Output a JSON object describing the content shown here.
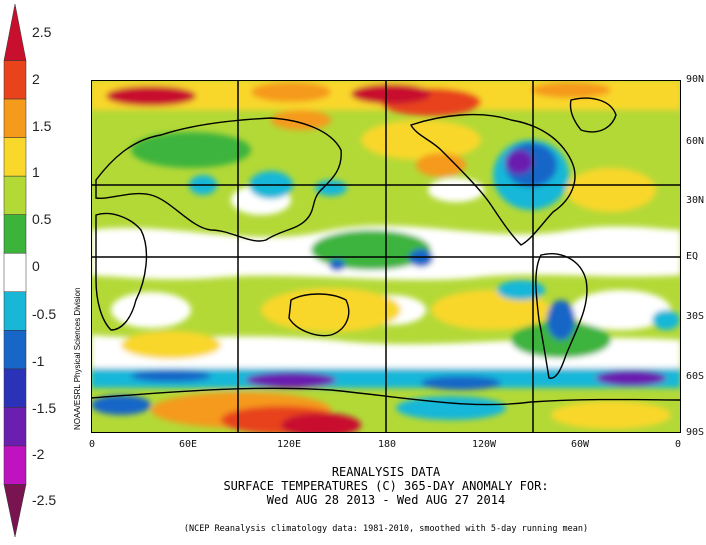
{
  "colorbar": {
    "labels": [
      "2.5",
      "2",
      "1.5",
      "1",
      "0.5",
      "0",
      "-0.5",
      "-1",
      "-1.5",
      "-2",
      "-2.5"
    ],
    "colors": [
      "#c8102e",
      "#e8431b",
      "#f59a1b",
      "#f9d72b",
      "#b3d937",
      "#3cb43c",
      "#ffffff",
      "#18b7d8",
      "#1866c8",
      "#2a33b8",
      "#6a1fb0",
      "#c013c0",
      "#7a1450"
    ]
  },
  "map": {
    "projection": "cylindrical equidistant",
    "lat_labels": [
      "90N",
      "60N",
      "30N",
      "EQ",
      "30S",
      "60S",
      "90S"
    ],
    "lon_labels": [
      "0",
      "60E",
      "120E",
      "180",
      "120W",
      "60W",
      "0"
    ],
    "source_credit": "NOAA/ESRL Physical Sciences Division"
  },
  "title": {
    "line1": "REANALYSIS DATA",
    "line2": "SURFACE TEMPERATURES (C)   365-DAY ANOMALY FOR:",
    "line3": "Wed AUG 28 2013 - Wed AUG 27 2014"
  },
  "footnote": "(NCEP Reanalysis climatology data: 1981-2010, smoothed with 5-day running mean)"
}
